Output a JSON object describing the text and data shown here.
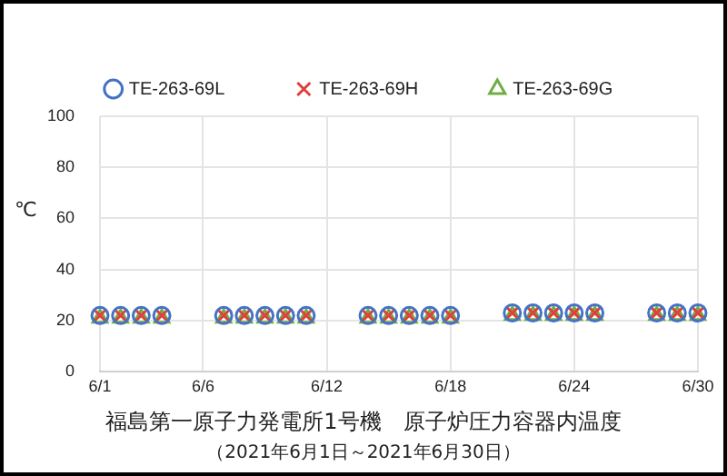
{
  "chart_data": {
    "type": "scatter",
    "title": "福島第一原子力発電所1号機　原子炉圧力容器内温度",
    "subtitle": "（2021年6月1日～2021年6月30日）",
    "ylabel": "℃",
    "categories": [
      "6/1",
      null,
      null,
      null,
      null,
      "6/6",
      null,
      null,
      null,
      null,
      null,
      "6/12",
      null,
      null,
      null,
      null,
      null,
      "6/18",
      null,
      null,
      null,
      null,
      null,
      "6/24",
      null,
      null,
      null,
      null,
      null,
      "6/30"
    ],
    "series": [
      {
        "name": "TE-263-69L",
        "color": "#4472c4",
        "marker": "circle",
        "values": [
          22,
          22,
          22,
          22,
          null,
          null,
          22,
          22,
          22,
          22,
          22,
          null,
          null,
          22,
          22,
          22,
          22,
          22,
          null,
          null,
          23,
          23,
          23,
          23,
          23,
          null,
          null,
          23,
          23,
          23
        ]
      },
      {
        "name": "TE-263-69H",
        "color": "#e0403a",
        "marker": "cross",
        "values": [
          22,
          22,
          22,
          22,
          null,
          null,
          22,
          22,
          22,
          22,
          22,
          null,
          null,
          22,
          22,
          22,
          22,
          22,
          null,
          null,
          23,
          23,
          23,
          23,
          23,
          null,
          null,
          23,
          23,
          23
        ]
      },
      {
        "name": "TE-263-69G",
        "color": "#70ad47",
        "marker": "triangle",
        "values": [
          21,
          21,
          21,
          21,
          null,
          null,
          21,
          21,
          21,
          21,
          21,
          null,
          null,
          21,
          21,
          21,
          21,
          21,
          null,
          null,
          22,
          22,
          22,
          22,
          22,
          null,
          null,
          22,
          22,
          22
        ]
      }
    ],
    "ylim": [
      0,
      100
    ],
    "yticks": [
      0,
      20,
      40,
      60,
      80,
      100
    ],
    "grid": true,
    "legend": "top"
  }
}
